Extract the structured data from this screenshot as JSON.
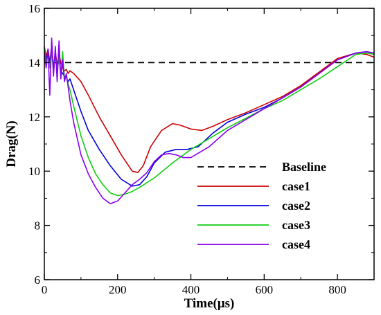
{
  "chart_data": {
    "type": "line",
    "title": "",
    "xlabel": "Time(μs)",
    "ylabel": "Drag(N)",
    "xlim": [
      0,
      900
    ],
    "ylim": [
      6,
      16
    ],
    "xticks": [
      0,
      200,
      400,
      600,
      800
    ],
    "yticks": [
      6,
      8,
      10,
      12,
      14,
      16
    ],
    "grid": false,
    "legend_position": "bottom-right",
    "series": [
      {
        "name": "Baseline",
        "color": "#000000",
        "style": "dashed",
        "x": [
          0,
          900
        ],
        "y": [
          14.0,
          14.0
        ]
      },
      {
        "name": "case1",
        "color": "#cc0000",
        "style": "solid",
        "x": [
          0,
          5,
          10,
          15,
          20,
          25,
          30,
          35,
          40,
          45,
          50,
          55,
          60,
          65,
          70,
          80,
          100,
          120,
          150,
          180,
          210,
          240,
          255,
          270,
          290,
          320,
          350,
          370,
          400,
          430,
          460,
          500,
          550,
          600,
          650,
          700,
          750,
          800,
          850,
          880,
          900
        ],
        "y": [
          14.6,
          14.2,
          14.5,
          14.0,
          14.6,
          13.8,
          14.4,
          13.9,
          14.3,
          14.0,
          13.8,
          13.7,
          13.75,
          13.6,
          13.7,
          13.6,
          13.3,
          12.8,
          12.0,
          11.3,
          10.6,
          10.0,
          9.95,
          10.2,
          10.9,
          11.5,
          11.75,
          11.7,
          11.55,
          11.5,
          11.65,
          11.9,
          12.15,
          12.45,
          12.75,
          13.15,
          13.65,
          14.15,
          14.35,
          14.3,
          14.2
        ]
      },
      {
        "name": "case2",
        "color": "#0000dd",
        "style": "solid",
        "x": [
          0,
          5,
          10,
          15,
          20,
          25,
          30,
          35,
          40,
          45,
          50,
          55,
          60,
          65,
          70,
          80,
          100,
          120,
          150,
          180,
          210,
          240,
          260,
          280,
          300,
          330,
          360,
          390,
          420,
          460,
          500,
          550,
          600,
          650,
          700,
          750,
          800,
          850,
          880,
          900
        ],
        "y": [
          14.5,
          14.1,
          14.4,
          13.9,
          14.6,
          13.7,
          14.3,
          13.8,
          14.1,
          13.7,
          13.6,
          13.5,
          13.45,
          13.3,
          13.4,
          13.0,
          12.2,
          11.5,
          10.8,
          10.2,
          9.7,
          9.45,
          9.5,
          9.8,
          10.3,
          10.7,
          10.8,
          10.8,
          10.9,
          11.4,
          11.8,
          12.1,
          12.35,
          12.7,
          13.1,
          13.6,
          14.1,
          14.35,
          14.4,
          14.35
        ]
      },
      {
        "name": "case3",
        "color": "#11cc11",
        "style": "solid",
        "x": [
          0,
          5,
          10,
          15,
          20,
          25,
          30,
          35,
          40,
          45,
          50,
          55,
          60,
          65,
          70,
          80,
          100,
          120,
          140,
          160,
          180,
          200,
          220,
          240,
          260,
          300,
          350,
          400,
          450,
          500,
          550,
          600,
          650,
          700,
          750,
          800,
          850,
          880,
          900
        ],
        "y": [
          14.5,
          14.0,
          14.3,
          13.8,
          14.5,
          13.6,
          14.4,
          13.7,
          14.2,
          13.5,
          14.4,
          13.4,
          13.5,
          13.2,
          13.0,
          12.4,
          11.3,
          10.5,
          9.9,
          9.5,
          9.2,
          9.1,
          9.15,
          9.25,
          9.4,
          9.75,
          10.3,
          10.8,
          11.2,
          11.6,
          11.95,
          12.3,
          12.6,
          13.0,
          13.4,
          13.85,
          14.3,
          14.35,
          14.3
        ]
      },
      {
        "name": "case4",
        "color": "#8800ee",
        "style": "solid",
        "x": [
          0,
          5,
          10,
          15,
          20,
          25,
          30,
          35,
          40,
          45,
          50,
          55,
          60,
          65,
          70,
          80,
          100,
          120,
          140,
          160,
          180,
          200,
          220,
          240,
          260,
          280,
          300,
          320,
          340,
          360,
          380,
          400,
          450,
          500,
          550,
          600,
          650,
          700,
          750,
          800,
          850,
          880,
          900
        ],
        "y": [
          14.4,
          13.8,
          14.5,
          12.8,
          14.9,
          13.5,
          14.6,
          13.3,
          14.8,
          13.4,
          14.1,
          13.3,
          13.6,
          13.1,
          12.6,
          11.8,
          10.6,
          9.9,
          9.4,
          9.0,
          8.8,
          8.9,
          9.2,
          9.5,
          9.7,
          9.95,
          10.35,
          10.6,
          10.65,
          10.6,
          10.5,
          10.5,
          10.9,
          11.5,
          11.9,
          12.3,
          12.7,
          13.1,
          13.6,
          14.1,
          14.35,
          14.4,
          14.35
        ]
      }
    ]
  }
}
